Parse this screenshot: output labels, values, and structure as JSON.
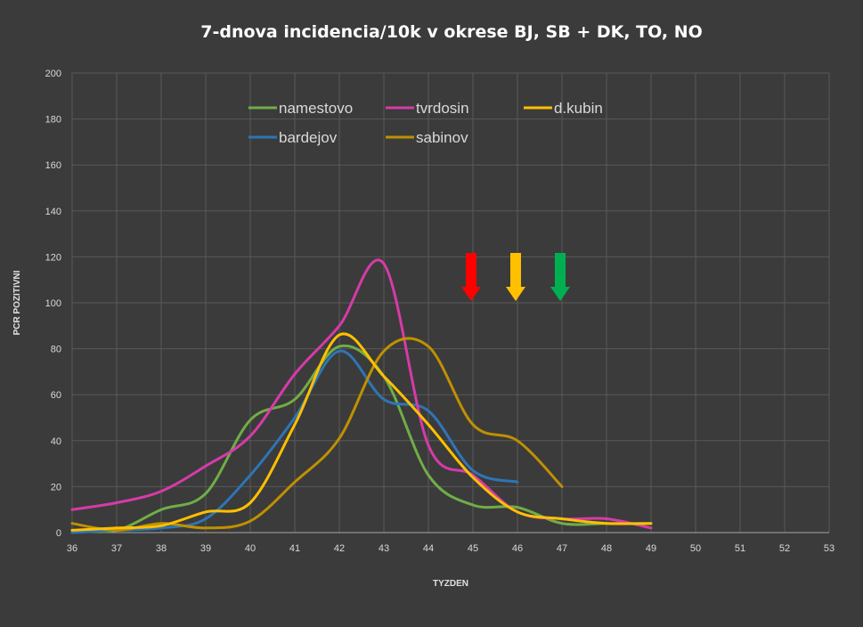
{
  "chart_data": {
    "type": "line",
    "title": "7-dnova incidencia/10k v okrese BJ, SB + DK, TO, NO",
    "xlabel": "TYZDEN",
    "ylabel": "PCR POZITIVNI",
    "xlim": [
      36,
      53
    ],
    "ylim": [
      0,
      200
    ],
    "x_ticks": [
      "36",
      "37",
      "38",
      "39",
      "40",
      "41",
      "42",
      "43",
      "44",
      "45",
      "46",
      "47",
      "48",
      "49",
      "50",
      "51",
      "52",
      "53"
    ],
    "y_ticks": [
      "0",
      "20",
      "40",
      "60",
      "80",
      "100",
      "120",
      "140",
      "160",
      "180",
      "200"
    ],
    "grid": true,
    "legend_position": "top-center",
    "background": "#3b3b3b",
    "grid_color": "#595959",
    "series": [
      {
        "name": "namestovo",
        "color": "#70ad47",
        "x": [
          36,
          37,
          38,
          39,
          40,
          41,
          42,
          43,
          44,
          45,
          46,
          47,
          48,
          49
        ],
        "y": [
          1,
          1,
          10,
          17,
          49,
          58,
          81,
          68,
          25,
          12,
          11,
          4,
          4,
          4
        ]
      },
      {
        "name": "bardejov",
        "color": "#2e75b6",
        "x": [
          36,
          37,
          38,
          39,
          40,
          41,
          42,
          43,
          44,
          45,
          46
        ],
        "y": [
          0,
          1,
          2,
          6,
          25,
          50,
          79,
          58,
          53,
          27,
          22
        ]
      },
      {
        "name": "tvrdosin",
        "color": "#d63ba8",
        "x": [
          36,
          37,
          38,
          39,
          40,
          41,
          42,
          43,
          44,
          45,
          46,
          47,
          48,
          49
        ],
        "y": [
          10,
          13,
          18,
          29,
          42,
          69,
          90,
          117,
          38,
          25,
          9,
          6,
          6,
          2
        ]
      },
      {
        "name": "sabinov",
        "color": "#bf9000",
        "x": [
          36,
          37,
          38,
          39,
          40,
          41,
          42,
          43,
          44,
          45,
          46,
          47
        ],
        "y": [
          4,
          1,
          4,
          2,
          5,
          22,
          41,
          79,
          81,
          47,
          40,
          20
        ]
      },
      {
        "name": "d.kubin",
        "color": "#ffc000",
        "x": [
          36,
          37,
          38,
          39,
          40,
          41,
          42,
          43,
          44,
          45,
          46,
          47,
          48,
          49
        ],
        "y": [
          1,
          2,
          3,
          9,
          13,
          47,
          86,
          68,
          47,
          24,
          9,
          6,
          4,
          4
        ]
      }
    ],
    "annotations": [
      {
        "type": "arrow-down",
        "x": 45,
        "color": "#ff0000"
      },
      {
        "type": "arrow-down",
        "x": 46,
        "color": "#ffc000"
      },
      {
        "type": "arrow-down",
        "x": 47,
        "color": "#00b050"
      }
    ]
  }
}
